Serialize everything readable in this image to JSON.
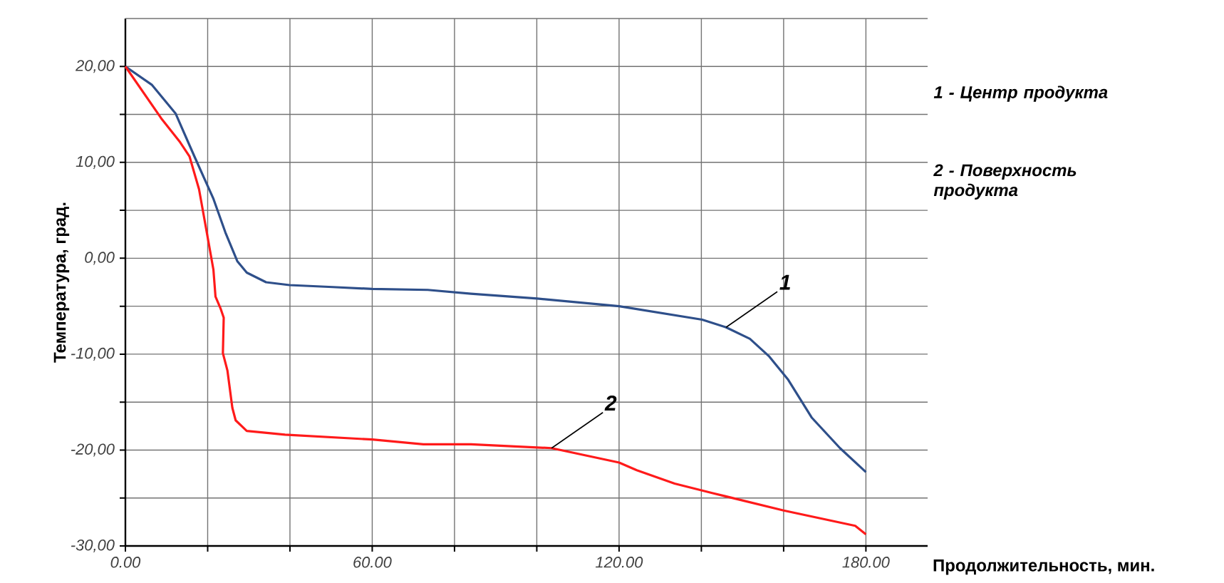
{
  "chart_data": {
    "type": "line",
    "xlabel": "Продолжительность, мин.",
    "ylabel": "Температура, град.",
    "xlim": [
      0,
      195
    ],
    "ylim": [
      -30,
      25
    ],
    "xticks": [
      {
        "value": 0,
        "label": "0.00"
      },
      {
        "value": 20,
        "label": null
      },
      {
        "value": 40,
        "label": null
      },
      {
        "value": 60,
        "label": "60.00"
      },
      {
        "value": 80,
        "label": null
      },
      {
        "value": 100,
        "label": null
      },
      {
        "value": 120,
        "label": "120.00"
      },
      {
        "value": 140,
        "label": null
      },
      {
        "value": 160,
        "label": null
      },
      {
        "value": 180,
        "label": "180.00"
      }
    ],
    "yticks": [
      {
        "value": -30,
        "label": "-30,00"
      },
      {
        "value": -25,
        "label": null
      },
      {
        "value": -20,
        "label": "-20,00"
      },
      {
        "value": -15,
        "label": null
      },
      {
        "value": -10,
        "label": "-10,00"
      },
      {
        "value": -5,
        "label": null
      },
      {
        "value": 0,
        "label": "0,00"
      },
      {
        "value": 5,
        "label": null
      },
      {
        "value": 10,
        "label": "10,00"
      },
      {
        "value": 15,
        "label": null
      },
      {
        "value": 20,
        "label": "20,00"
      }
    ],
    "grid": true,
    "legend": "right",
    "marker": "none",
    "line_style": "solid",
    "series": [
      {
        "name": "1 - Центр продукта",
        "color": "#2e4f8a",
        "x": [
          0,
          6.4,
          12.2,
          16.8,
          21.4,
          24.3,
          27.2,
          29.5,
          34.2,
          39.9,
          50.4,
          60,
          73.5,
          84,
          100.1,
          120,
          140.2,
          146,
          151.8,
          156.4,
          161,
          166.8,
          173.7,
          180
        ],
        "values": [
          20,
          18.1,
          15.1,
          10.6,
          6.2,
          2.7,
          -0.3,
          -1.5,
          -2.5,
          -2.8,
          -3.0,
          -3.2,
          -3.3,
          -3.7,
          -4.2,
          -5.0,
          -6.4,
          -7.2,
          -8.4,
          -10.2,
          -12.6,
          -16.6,
          -19.8,
          -22.3
        ]
      },
      {
        "name": "2 - Поверхность продукта",
        "color": "#ff1a1a",
        "x": [
          0,
          8.7,
          13.3,
          15.6,
          17.9,
          20.2,
          21.4,
          21.9,
          23.1,
          23.9,
          23.7,
          24.8,
          26,
          26.8,
          29.5,
          38.8,
          60,
          72.4,
          84,
          103.6,
          120,
          124.3,
          133.5,
          142.8,
          160,
          177.4,
          180
        ],
        "values": [
          20,
          14.6,
          12.1,
          10.6,
          7.2,
          1.7,
          -1.2,
          -4.0,
          -5.2,
          -6.2,
          -9.9,
          -11.7,
          -15.6,
          -16.9,
          -18.0,
          -18.4,
          -18.9,
          -19.4,
          -19.4,
          -19.8,
          -21.3,
          -22.1,
          -23.5,
          -24.5,
          -26.3,
          -27.9,
          -28.8
        ]
      }
    ],
    "annotations": [
      {
        "text": "1",
        "x": 146,
        "y": -7.2
      },
      {
        "text": "2",
        "x": 103.6,
        "y": -19.8
      }
    ]
  }
}
